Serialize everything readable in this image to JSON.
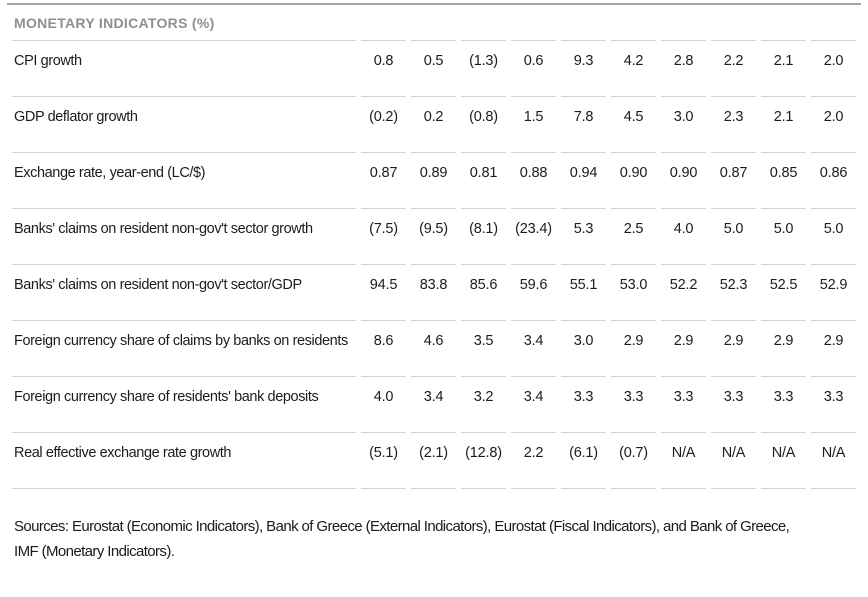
{
  "chart_data": {
    "type": "table",
    "title": "MONETARY INDICATORS (%)",
    "columns_note": "10 unlabeled period columns (no year headers visible)",
    "rows": [
      {
        "label": "CPI growth",
        "values": [
          "0.8",
          "0.5",
          "(1.3)",
          "0.6",
          "9.3",
          "4.2",
          "2.8",
          "2.2",
          "2.1",
          "2.0"
        ]
      },
      {
        "label": "GDP deflator growth",
        "values": [
          "(0.2)",
          "0.2",
          "(0.8)",
          "1.5",
          "7.8",
          "4.5",
          "3.0",
          "2.3",
          "2.1",
          "2.0"
        ]
      },
      {
        "label": "Exchange rate, year-end (LC/$)",
        "values": [
          "0.87",
          "0.89",
          "0.81",
          "0.88",
          "0.94",
          "0.90",
          "0.90",
          "0.87",
          "0.85",
          "0.86"
        ]
      },
      {
        "label": "Banks' claims on resident non-gov't sector growth",
        "values": [
          "(7.5)",
          "(9.5)",
          "(8.1)",
          "(23.4)",
          "5.3",
          "2.5",
          "4.0",
          "5.0",
          "5.0",
          "5.0"
        ]
      },
      {
        "label": "Banks' claims on resident non-gov't sector/GDP",
        "values": [
          "94.5",
          "83.8",
          "85.6",
          "59.6",
          "55.1",
          "53.0",
          "52.2",
          "52.3",
          "52.5",
          "52.9"
        ]
      },
      {
        "label": "Foreign currency share of claims by banks on residents",
        "values": [
          "8.6",
          "4.6",
          "3.5",
          "3.4",
          "3.0",
          "2.9",
          "2.9",
          "2.9",
          "2.9",
          "2.9"
        ]
      },
      {
        "label": "Foreign currency share of residents' bank deposits",
        "values": [
          "4.0",
          "3.4",
          "3.2",
          "3.4",
          "3.3",
          "3.3",
          "3.3",
          "3.3",
          "3.3",
          "3.3"
        ]
      },
      {
        "label": "Real effective exchange rate growth",
        "values": [
          "(5.1)",
          "(2.1)",
          "(12.8)",
          "2.2",
          "(6.1)",
          "(0.7)",
          "N/A",
          "N/A",
          "N/A",
          "N/A"
        ]
      }
    ],
    "source_note": "Sources: Eurostat (Economic Indicators), Bank of Greece (External Indicators), Eurostat (Fiscal Indicators), and Bank of Greece,\nIMF (Monetary Indicators)."
  },
  "colors": {
    "background": "#ffffff",
    "title_text": "#8f8f8f",
    "body_text": "#1c1c1c",
    "top_border": "#a3a3a3",
    "row_border": "#d2d2d2"
  }
}
